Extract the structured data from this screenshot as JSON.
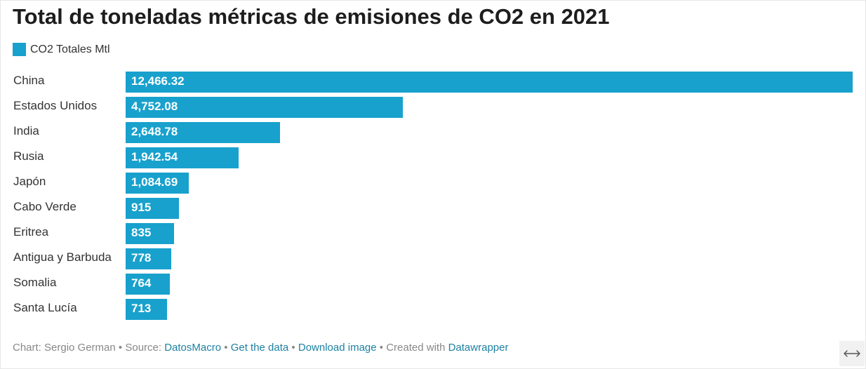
{
  "title": "Total de toneladas métricas de emisiones de CO2 en 2021",
  "legend": {
    "label": "CO2 Totales Mtl",
    "color": "#18a1cd"
  },
  "footer": {
    "chart_credit": "Chart: Sergio German",
    "source_label": "Source:",
    "source_link": "DatosMacro",
    "get_data": "Get the data",
    "download_image": "Download image",
    "created_with": "Created with",
    "datawrapper": "Datawrapper",
    "sep": "•"
  },
  "expand_icon": "horizontal-resize-icon",
  "chart_data": {
    "type": "bar",
    "orientation": "horizontal",
    "title": "Total de toneladas métricas de emisiones de CO2 en 2021",
    "categories": [
      "China",
      "Estados Unidos",
      "India",
      "Rusia",
      "Japón",
      "Cabo Verde",
      "Eritrea",
      "Antigua y Barbuda",
      "Somalia",
      "Santa Lucía"
    ],
    "series": [
      {
        "name": "CO2 Totales Mtl",
        "values": [
          12466.32,
          4752.08,
          2648.78,
          1942.54,
          1084.69,
          915,
          835,
          778,
          764,
          713
        ],
        "value_labels": [
          "12,466.32",
          "4,752.08",
          "2,648.78",
          "1,942.54",
          "1,084.69",
          "915",
          "835",
          "778",
          "764",
          "713"
        ],
        "color": "#18a1cd"
      }
    ],
    "xlim": [
      0,
      12466.32
    ],
    "grid": false,
    "legend_position": "top-left"
  }
}
